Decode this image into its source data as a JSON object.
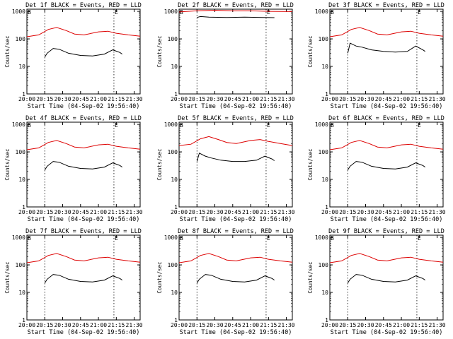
{
  "figure": {
    "xlabel": "Start Time (04-Sep-02 19:56:40)",
    "ylabel": "Counts/sec",
    "x_ticks": [
      "20:00",
      "20:15",
      "20:30",
      "20:45",
      "21:00",
      "21:15",
      "21:30"
    ],
    "y_ticks": [
      "1",
      "10",
      "100",
      "1000"
    ],
    "marker_b": "B",
    "marker_e": "E"
  },
  "colors": {
    "events": "#000000",
    "lld": "#dd0000",
    "axis": "#000000"
  },
  "chart_data": [
    {
      "type": "line",
      "title": "Det 1f BLACK = Events, RED = LLD",
      "xlabel": "Start Time (04-Sep-02 19:56:40)",
      "ylabel": "Counts/sec",
      "ylog": true,
      "ylim": [
        1,
        1200
      ],
      "xlim": [
        "20:00",
        "21:35"
      ],
      "vlines": [
        "20:15",
        "21:13"
      ],
      "series": [
        {
          "name": "LLD",
          "color": "#dd0000",
          "x": [
            "20:00",
            "20:10",
            "20:18",
            "20:25",
            "20:33",
            "20:40",
            "20:48",
            "21:00",
            "21:08",
            "21:15",
            "21:25",
            "21:35"
          ],
          "y": [
            120,
            140,
            220,
            260,
            200,
            150,
            140,
            180,
            190,
            160,
            140,
            125
          ]
        },
        {
          "name": "Events",
          "color": "#000000",
          "x": [
            "20:15",
            "20:17",
            "20:22",
            "20:27",
            "20:35",
            "20:45",
            "20:55",
            "21:05",
            "21:12",
            "21:18",
            "21:20"
          ],
          "y": [
            22,
            30,
            45,
            42,
            30,
            25,
            24,
            28,
            40,
            32,
            28
          ]
        }
      ]
    },
    {
      "type": "line",
      "title": "Det 2f BLACK = Events, RED = LLD",
      "xlabel": "Start Time (04-Sep-02 19:56:40)",
      "ylabel": "Counts/sec",
      "ylog": true,
      "ylim": [
        1,
        1200
      ],
      "xlim": [
        "20:00",
        "21:35"
      ],
      "vlines": [
        "20:15",
        "21:13"
      ],
      "series": [
        {
          "name": "LLD",
          "color": "#dd0000",
          "x": [
            "20:00",
            "20:15",
            "20:30",
            "20:45",
            "21:00",
            "21:15",
            "21:35"
          ],
          "y": [
            950,
            1050,
            1100,
            1050,
            1050,
            1000,
            980
          ]
        },
        {
          "name": "Events",
          "color": "#000000",
          "x": [
            "20:15",
            "20:18",
            "20:25",
            "20:40",
            "20:55",
            "21:10",
            "21:20"
          ],
          "y": [
            600,
            650,
            620,
            600,
            620,
            600,
            590
          ]
        }
      ]
    },
    {
      "type": "line",
      "title": "Det 3f BLACK = Events, RED = LLD",
      "xlabel": "Start Time (04-Sep-02 19:56:40)",
      "ylabel": "Counts/sec",
      "ylog": true,
      "ylim": [
        1,
        1200
      ],
      "xlim": [
        "20:00",
        "21:35"
      ],
      "vlines": [
        "20:15",
        "21:13"
      ],
      "series": [
        {
          "name": "LLD",
          "color": "#dd0000",
          "x": [
            "20:00",
            "20:10",
            "20:18",
            "20:25",
            "20:33",
            "20:40",
            "20:48",
            "21:00",
            "21:08",
            "21:15",
            "21:25",
            "21:35"
          ],
          "y": [
            120,
            140,
            220,
            260,
            200,
            150,
            140,
            180,
            190,
            160,
            140,
            125
          ]
        },
        {
          "name": "Events",
          "color": "#000000",
          "x": [
            "20:15",
            "20:17",
            "20:22",
            "20:27",
            "20:35",
            "20:45",
            "20:55",
            "21:05",
            "21:12",
            "21:18",
            "21:20"
          ],
          "y": [
            30,
            70,
            55,
            50,
            40,
            35,
            33,
            35,
            55,
            40,
            35
          ]
        }
      ]
    },
    {
      "type": "line",
      "title": "Det 4f BLACK = Events, RED = LLD",
      "xlabel": "Start Time (04-Sep-02 19:56:40)",
      "ylabel": "Counts/sec",
      "ylog": true,
      "ylim": [
        1,
        1200
      ],
      "xlim": [
        "20:00",
        "21:35"
      ],
      "vlines": [
        "20:15",
        "21:13"
      ],
      "series": [
        {
          "name": "LLD",
          "color": "#dd0000",
          "x": [
            "20:00",
            "20:10",
            "20:18",
            "20:25",
            "20:33",
            "20:40",
            "20:48",
            "21:00",
            "21:08",
            "21:15",
            "21:25",
            "21:35"
          ],
          "y": [
            120,
            140,
            220,
            260,
            200,
            150,
            140,
            180,
            190,
            160,
            140,
            125
          ]
        },
        {
          "name": "Events",
          "color": "#000000",
          "x": [
            "20:15",
            "20:17",
            "20:22",
            "20:27",
            "20:35",
            "20:45",
            "20:55",
            "21:05",
            "21:12",
            "21:18",
            "21:20"
          ],
          "y": [
            22,
            30,
            45,
            42,
            30,
            25,
            24,
            28,
            40,
            32,
            28
          ]
        }
      ]
    },
    {
      "type": "line",
      "title": "Det 5f BLACK = Events, RED = LLD",
      "xlabel": "Start Time (04-Sep-02 19:56:40)",
      "ylabel": "Counts/sec",
      "ylog": true,
      "ylim": [
        1,
        1200
      ],
      "xlim": [
        "20:00",
        "21:35"
      ],
      "vlines": [
        "20:15",
        "21:13"
      ],
      "series": [
        {
          "name": "LLD",
          "color": "#dd0000",
          "x": [
            "20:00",
            "20:10",
            "20:18",
            "20:25",
            "20:33",
            "20:40",
            "20:48",
            "21:00",
            "21:08",
            "21:15",
            "21:25",
            "21:35"
          ],
          "y": [
            170,
            190,
            300,
            360,
            280,
            220,
            200,
            260,
            280,
            240,
            200,
            170
          ]
        },
        {
          "name": "Events",
          "color": "#000000",
          "x": [
            "20:15",
            "20:17",
            "20:22",
            "20:27",
            "20:35",
            "20:45",
            "20:55",
            "21:05",
            "21:12",
            "21:18",
            "21:20"
          ],
          "y": [
            45,
            90,
            70,
            60,
            50,
            45,
            45,
            50,
            70,
            55,
            48
          ]
        }
      ]
    },
    {
      "type": "line",
      "title": "Det 6f BLACK = Events, RED = LLD",
      "xlabel": "Start Time (04-Sep-02 19:56:40)",
      "ylabel": "Counts/sec",
      "ylog": true,
      "ylim": [
        1,
        1200
      ],
      "xlim": [
        "20:00",
        "21:35"
      ],
      "vlines": [
        "20:15",
        "21:13"
      ],
      "series": [
        {
          "name": "LLD",
          "color": "#dd0000",
          "x": [
            "20:00",
            "20:10",
            "20:18",
            "20:25",
            "20:33",
            "20:40",
            "20:48",
            "21:00",
            "21:08",
            "21:15",
            "21:25",
            "21:35"
          ],
          "y": [
            120,
            140,
            220,
            260,
            200,
            150,
            140,
            180,
            190,
            160,
            140,
            125
          ]
        },
        {
          "name": "Events",
          "color": "#000000",
          "x": [
            "20:15",
            "20:17",
            "20:22",
            "20:27",
            "20:35",
            "20:45",
            "20:55",
            "21:05",
            "21:12",
            "21:18",
            "21:20"
          ],
          "y": [
            22,
            30,
            45,
            42,
            30,
            25,
            24,
            28,
            40,
            32,
            28
          ]
        }
      ]
    },
    {
      "type": "line",
      "title": "Det 7f BLACK = Events, RED = LLD",
      "xlabel": "Start Time (04-Sep-02 19:56:40)",
      "ylabel": "Counts/sec",
      "ylog": true,
      "ylim": [
        1,
        1200
      ],
      "xlim": [
        "20:00",
        "21:35"
      ],
      "vlines": [
        "20:15",
        "21:13"
      ],
      "series": [
        {
          "name": "LLD",
          "color": "#dd0000",
          "x": [
            "20:00",
            "20:10",
            "20:18",
            "20:25",
            "20:33",
            "20:40",
            "20:48",
            "21:00",
            "21:08",
            "21:15",
            "21:25",
            "21:35"
          ],
          "y": [
            120,
            140,
            220,
            260,
            200,
            150,
            140,
            180,
            190,
            160,
            140,
            125
          ]
        },
        {
          "name": "Events",
          "color": "#000000",
          "x": [
            "20:15",
            "20:17",
            "20:22",
            "20:27",
            "20:35",
            "20:45",
            "20:55",
            "21:05",
            "21:12",
            "21:18",
            "21:20"
          ],
          "y": [
            22,
            30,
            45,
            42,
            30,
            25,
            24,
            28,
            40,
            32,
            28
          ]
        }
      ]
    },
    {
      "type": "line",
      "title": "Det 8f BLACK = Events, RED = LLD",
      "xlabel": "Start Time (04-Sep-02 19:56:40)",
      "ylabel": "Counts/sec",
      "ylog": true,
      "ylim": [
        1,
        1200
      ],
      "xlim": [
        "20:00",
        "21:35"
      ],
      "vlines": [
        "20:15",
        "21:13"
      ],
      "series": [
        {
          "name": "LLD",
          "color": "#dd0000",
          "x": [
            "20:00",
            "20:10",
            "20:18",
            "20:25",
            "20:33",
            "20:40",
            "20:48",
            "21:00",
            "21:08",
            "21:15",
            "21:25",
            "21:35"
          ],
          "y": [
            120,
            140,
            220,
            260,
            200,
            150,
            140,
            180,
            190,
            160,
            140,
            125
          ]
        },
        {
          "name": "Events",
          "color": "#000000",
          "x": [
            "20:15",
            "20:17",
            "20:22",
            "20:27",
            "20:35",
            "20:45",
            "20:55",
            "21:05",
            "21:12",
            "21:18",
            "21:20"
          ],
          "y": [
            22,
            30,
            45,
            42,
            30,
            25,
            24,
            28,
            40,
            32,
            28
          ]
        }
      ]
    },
    {
      "type": "line",
      "title": "Det 9f BLACK = Events, RED = LLD",
      "xlabel": "Start Time (04-Sep-02 19:56:40)",
      "ylabel": "Counts/sec",
      "ylog": true,
      "ylim": [
        1,
        1200
      ],
      "xlim": [
        "20:00",
        "21:35"
      ],
      "vlines": [
        "20:15",
        "21:13"
      ],
      "series": [
        {
          "name": "LLD",
          "color": "#dd0000",
          "x": [
            "20:00",
            "20:10",
            "20:18",
            "20:25",
            "20:33",
            "20:40",
            "20:48",
            "21:00",
            "21:08",
            "21:15",
            "21:25",
            "21:35"
          ],
          "y": [
            120,
            140,
            220,
            260,
            200,
            150,
            140,
            180,
            190,
            160,
            140,
            125
          ]
        },
        {
          "name": "Events",
          "color": "#000000",
          "x": [
            "20:15",
            "20:17",
            "20:22",
            "20:27",
            "20:35",
            "20:45",
            "20:55",
            "21:05",
            "21:12",
            "21:18",
            "21:20"
          ],
          "y": [
            22,
            30,
            45,
            42,
            30,
            25,
            24,
            28,
            40,
            32,
            28
          ]
        }
      ]
    }
  ]
}
